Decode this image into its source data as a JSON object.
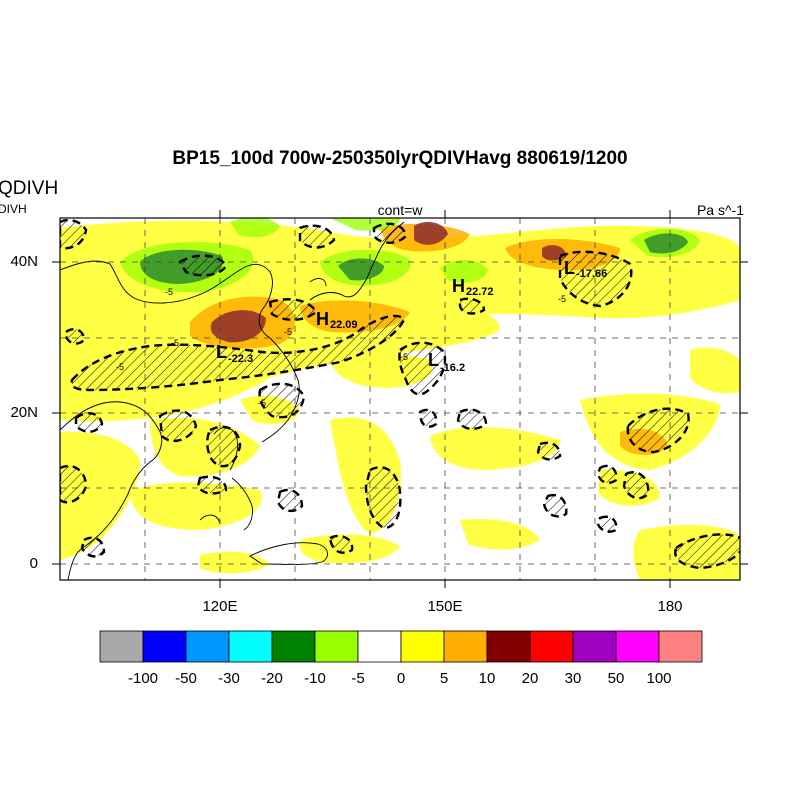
{
  "title": "BP15_100d 700w-250350lyrQDIVHavg  880619/1200",
  "left_string_main": "QDIVH",
  "left_string_sub": "DIVH",
  "center_string": "cont=w",
  "units": "Pa s^-1",
  "lat_labels": [
    "40N",
    "20N",
    "0"
  ],
  "lon_labels": [
    "120E",
    "150E",
    "180"
  ],
  "extrema": [
    {
      "type": "H",
      "value": "22.72"
    },
    {
      "type": "H",
      "value": "22.09"
    },
    {
      "type": "L",
      "value": "-17.66"
    },
    {
      "type": "L",
      "value": "-22.3"
    },
    {
      "type": "L",
      "value": "-16.2"
    }
  ],
  "contour_labels": [
    "-5",
    "-5",
    "-5",
    "-5",
    "-5",
    "-5",
    "-5"
  ],
  "colorbar": {
    "colors": [
      "#a9a9a9",
      "#0000ff",
      "#0096ff",
      "#00ffff",
      "#008200",
      "#98ff00",
      "#ffffff",
      "#ffff00",
      "#ffae00",
      "#820000",
      "#ff0000",
      "#a000c0",
      "#ff00ff",
      "#ff8080"
    ],
    "labels": [
      "-100",
      "-50",
      "-30",
      "-20",
      "-10",
      "-5",
      "0",
      "5",
      "10",
      "20",
      "30",
      "50",
      "100"
    ]
  }
}
